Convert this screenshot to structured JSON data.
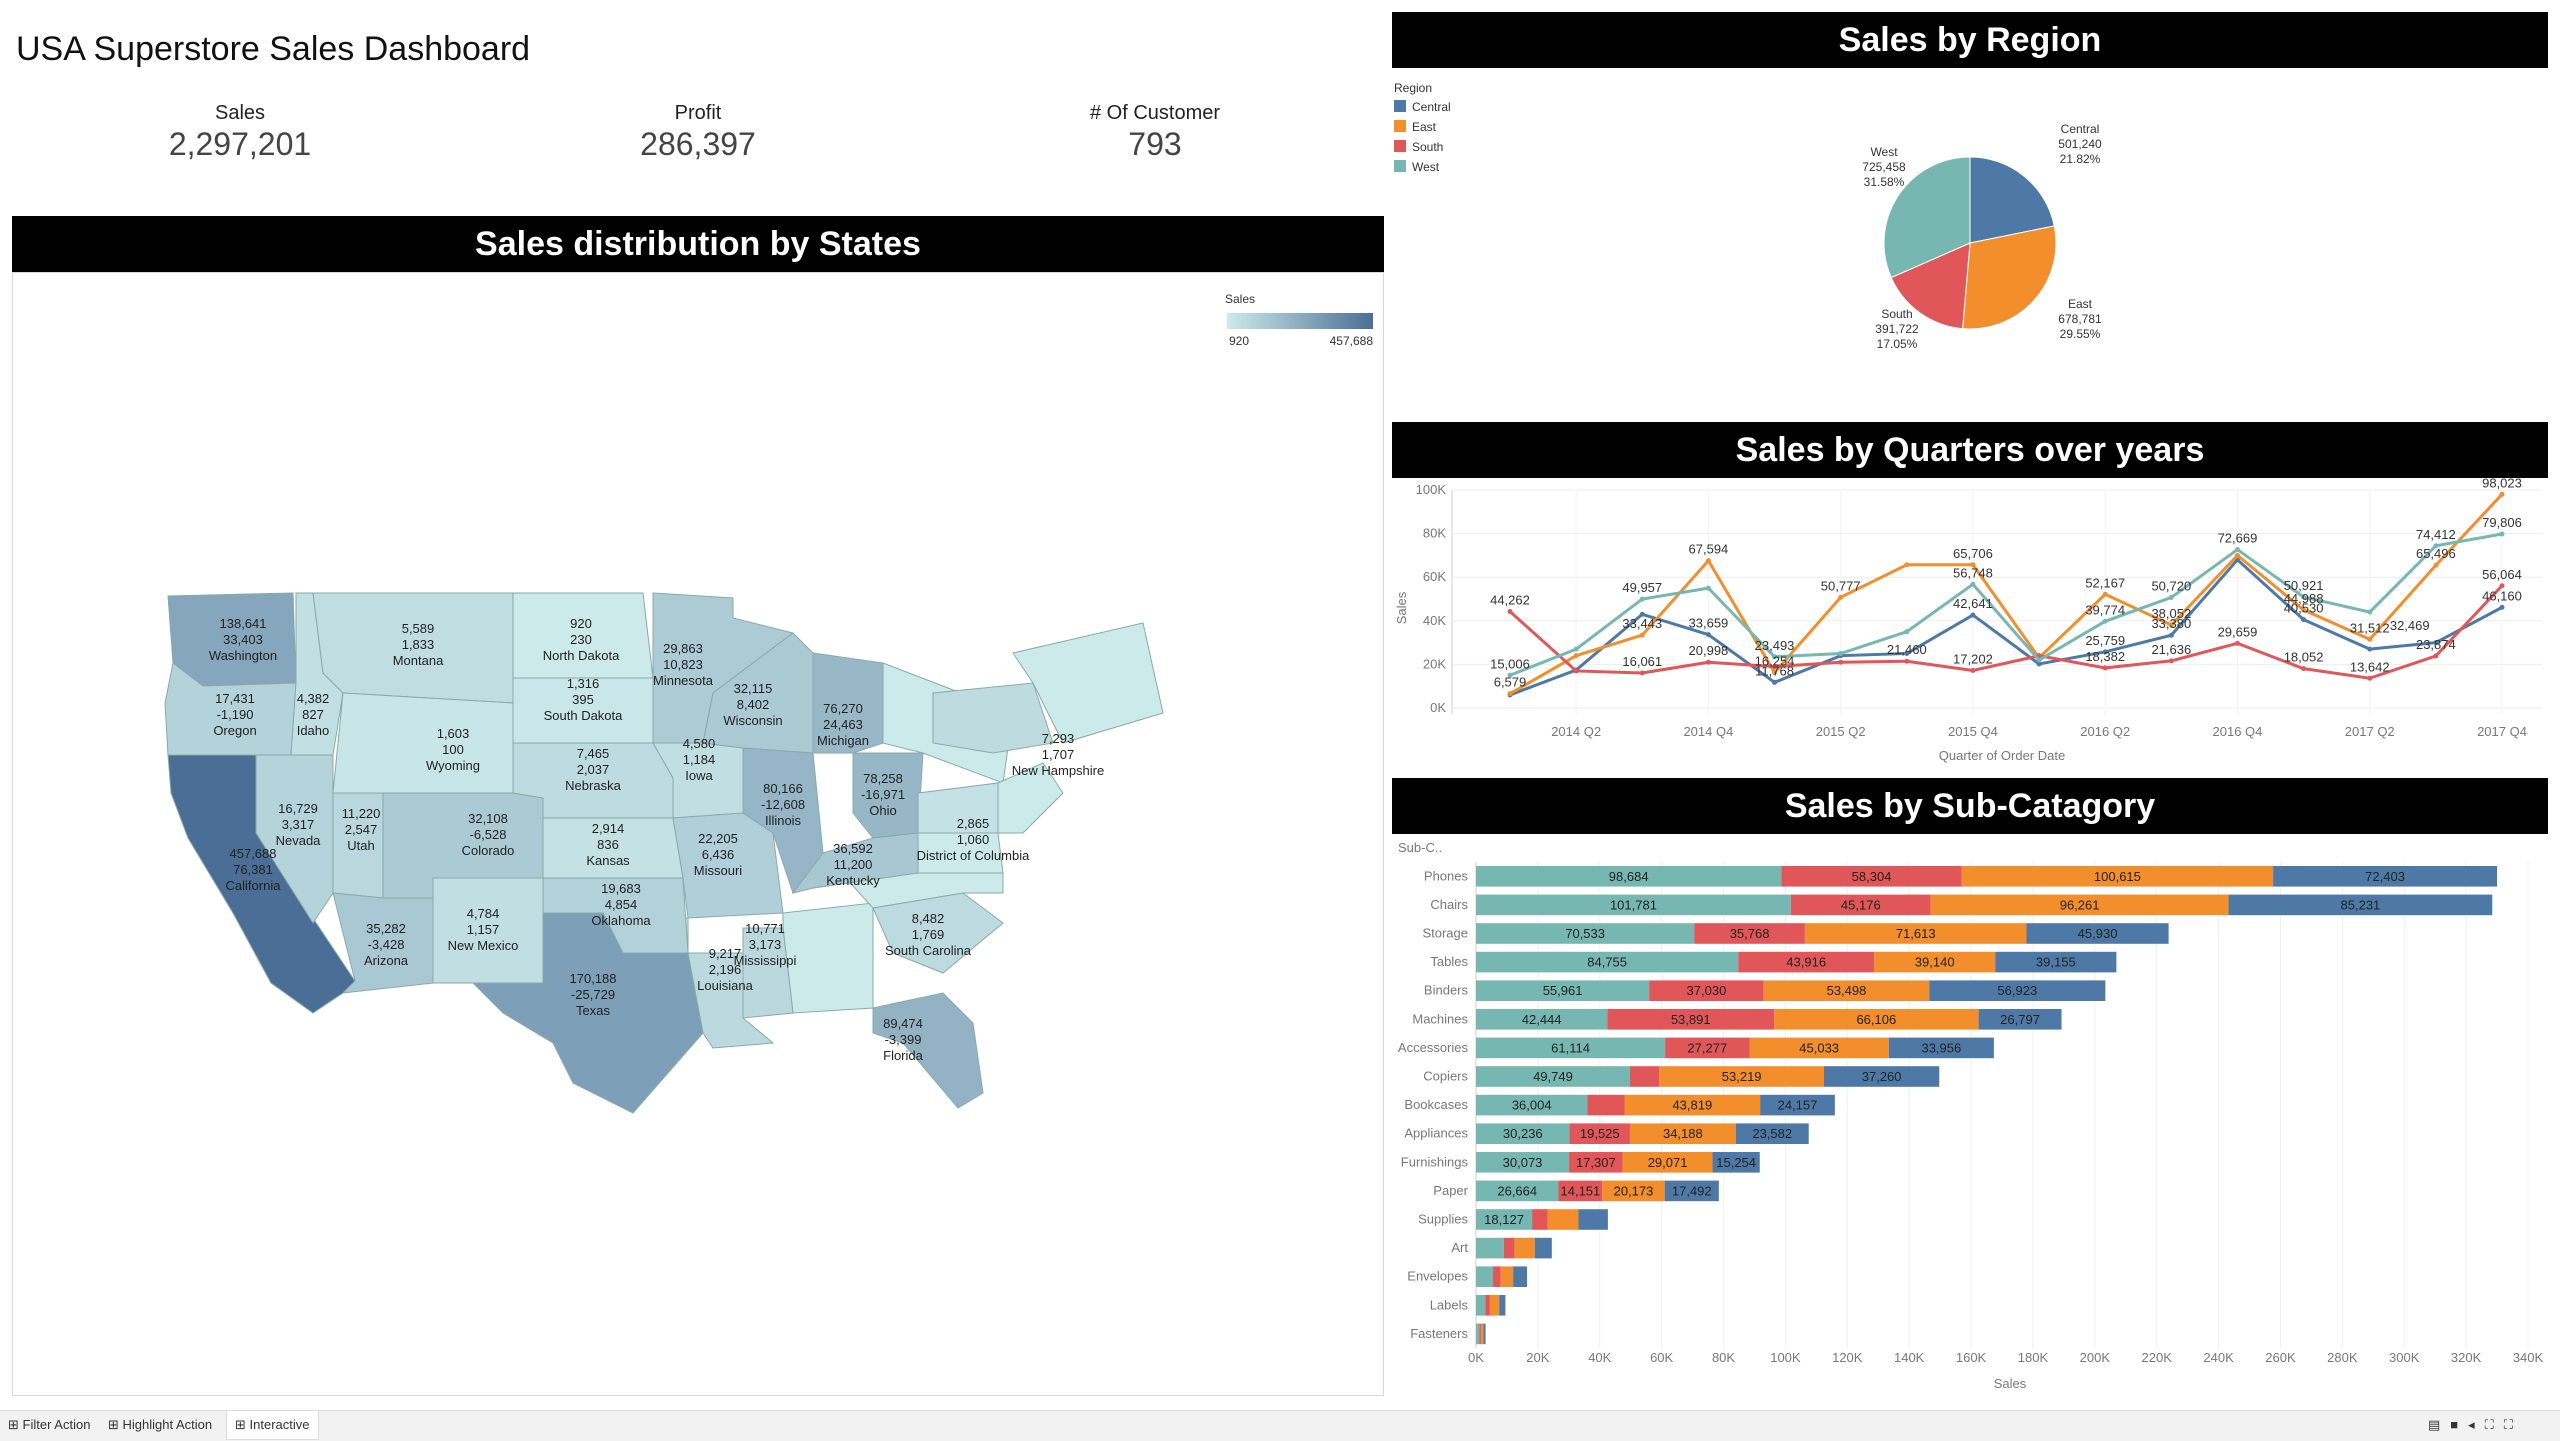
{
  "dashboard": {
    "title": "USA Superstore Sales Dashboard",
    "kpis": [
      {
        "label": "Sales",
        "value": "2,297,201"
      },
      {
        "label": "Profit",
        "value": "286,397"
      },
      {
        "label": "# Of Customer",
        "value": "793"
      }
    ]
  },
  "map": {
    "banner": "Sales distribution by States",
    "legend_title": "Sales",
    "legend_min": "920",
    "legend_max": "457,688",
    "colors": {
      "low": "#cdeaea",
      "high": "#4a6e96"
    }
  },
  "states": [
    {
      "name": "Washington",
      "sales": "138,641",
      "profit": "33,403"
    },
    {
      "name": "Oregon",
      "sales": "17,431",
      "profit": "-1,190"
    },
    {
      "name": "Idaho",
      "sales": "4,382",
      "profit": "827"
    },
    {
      "name": "Montana",
      "sales": "5,589",
      "profit": "1,833"
    },
    {
      "name": "Wyoming",
      "sales": "1,603",
      "profit": "100"
    },
    {
      "name": "North Dakota",
      "sales": "920",
      "profit": "230"
    },
    {
      "name": "South Dakota",
      "sales": "1,316",
      "profit": "395"
    },
    {
      "name": "Minnesota",
      "sales": "29,863",
      "profit": "10,823"
    },
    {
      "name": "Wisconsin",
      "sales": "32,115",
      "profit": "8,402"
    },
    {
      "name": "Michigan",
      "sales": "76,270",
      "profit": "24,463"
    },
    {
      "name": "Iowa",
      "sales": "4,580",
      "profit": "1,184"
    },
    {
      "name": "Nebraska",
      "sales": "7,465",
      "profit": "2,037"
    },
    {
      "name": "Illinois",
      "sales": "80,166",
      "profit": "-12,608"
    },
    {
      "name": "Ohio",
      "sales": "78,258",
      "profit": "-16,971"
    },
    {
      "name": "New Hampshire",
      "sales": "7,293",
      "profit": "1,707"
    },
    {
      "name": "District of Columbia",
      "sales": "2,865",
      "profit": "1,060"
    },
    {
      "name": "California",
      "sales": "457,688",
      "profit": "76,381"
    },
    {
      "name": "Nevada",
      "sales": "16,729",
      "profit": "3,317"
    },
    {
      "name": "Utah",
      "sales": "11,220",
      "profit": "2,547"
    },
    {
      "name": "Colorado",
      "sales": "32,108",
      "profit": "-6,528"
    },
    {
      "name": "Kansas",
      "sales": "2,914",
      "profit": "836"
    },
    {
      "name": "Missouri",
      "sales": "22,205",
      "profit": "6,436"
    },
    {
      "name": "Kentucky",
      "sales": "36,592",
      "profit": "11,200"
    },
    {
      "name": "Arizona",
      "sales": "35,282",
      "profit": "-3,428"
    },
    {
      "name": "New Mexico",
      "sales": "4,784",
      "profit": "1,157"
    },
    {
      "name": "Oklahoma",
      "sales": "19,683",
      "profit": "4,854"
    },
    {
      "name": "Mississippi",
      "sales": "10,771",
      "profit": "3,173"
    },
    {
      "name": "South Carolina",
      "sales": "8,482",
      "profit": "1,769"
    },
    {
      "name": "Texas",
      "sales": "170,188",
      "profit": "-25,729"
    },
    {
      "name": "Louisiana",
      "sales": "9,217",
      "profit": "2,196"
    },
    {
      "name": "Florida",
      "sales": "89,474",
      "profit": "-3,399"
    }
  ],
  "region": {
    "banner": "Sales by Region",
    "legend_title": "Region",
    "colors": {
      "Central": "#4e79a7",
      "East": "#f28e2b",
      "South": "#e15759",
      "West": "#76b7b2"
    }
  },
  "quarters": {
    "banner": "Sales by Quarters over years",
    "xlabel": "Quarter of Order Date",
    "ylabel": "Sales",
    "xticks": [
      "2014 Q2",
      "2014 Q4",
      "2015 Q2",
      "2015 Q4",
      "2016 Q2",
      "2016 Q4",
      "2017 Q2",
      "2017 Q4"
    ]
  },
  "subcat": {
    "banner": "Sales by Sub-Catagory",
    "row_header": "Sub-C..",
    "xlabel": "Sales"
  },
  "chart_data": [
    {
      "type": "pie",
      "title": "Sales by Region",
      "labels": [
        "Central",
        "East",
        "South",
        "West"
      ],
      "values": [
        501240,
        678781,
        391722,
        725458
      ],
      "value_labels": [
        "501,240",
        "678,781",
        "391,722",
        "725,458"
      ],
      "percent_labels": [
        "21.82%",
        "29.55%",
        "17.05%",
        "31.58%"
      ]
    },
    {
      "type": "line",
      "title": "Sales by Quarters over years",
      "x": [
        "2014 Q1",
        "2014 Q2",
        "2014 Q3",
        "2014 Q4",
        "2015 Q1",
        "2015 Q2",
        "2015 Q3",
        "2015 Q4",
        "2016 Q1",
        "2016 Q2",
        "2016 Q3",
        "2016 Q4",
        "2017 Q1",
        "2017 Q2",
        "2017 Q3",
        "2017 Q4"
      ],
      "ylim": [
        0,
        100000
      ],
      "yticks": [
        "0K",
        "20K",
        "40K",
        "60K",
        "80K",
        "100K"
      ],
      "series": [
        {
          "name": "Central",
          "values": [
            6000,
            17407,
            43000,
            33659,
            11768,
            24000,
            25000,
            42641,
            20212,
            25759,
            33380,
            68000,
            40530,
            27000,
            30000,
            46160
          ],
          "labels": [
            "",
            "",
            "",
            "33,659",
            "11,768",
            "",
            "",
            "42,641",
            "",
            "25,759",
            "33,380",
            "",
            "40,530",
            "",
            "",
            "46,160"
          ]
        },
        {
          "name": "East",
          "values": [
            6579,
            24000,
            33443,
            67594,
            16254,
            50777,
            65706,
            65706,
            23000,
            52167,
            38052,
            70000,
            44988,
            31512,
            65496,
            98023
          ],
          "labels": [
            "6,579",
            "",
            "33,443",
            "67,594",
            "16,254",
            "50,777",
            "",
            "65,706",
            "",
            "52,167",
            "38,052",
            "",
            "44,988",
            "31,512",
            "65,496",
            "98,023"
          ]
        },
        {
          "name": "South",
          "values": [
            44262,
            17000,
            16061,
            20998,
            19000,
            21000,
            21460,
            17202,
            24000,
            18382,
            21636,
            29659,
            18052,
            13642,
            23874,
            56064
          ],
          "labels": [
            "44,262",
            "",
            "16,061",
            "20,998",
            "",
            "",
            "21,460",
            "17,202",
            "",
            "18,382",
            "21,636",
            "29,659",
            "18,052",
            "13,642",
            "23,874",
            "56,064"
          ]
        },
        {
          "name": "West",
          "values": [
            15006,
            27000,
            49957,
            55000,
            23493,
            25000,
            35000,
            56748,
            22000,
            39774,
            50720,
            72669,
            50921,
            44000,
            74412,
            79806
          ],
          "labels": [
            "15,006",
            "",
            "49,957",
            "",
            "23,493",
            "",
            "",
            "56,748",
            "",
            "39,774",
            "50,720",
            "72,669",
            "50,921",
            "",
            "74,412",
            "79,806"
          ]
        }
      ],
      "extra_labels": [
        {
          "x": "2017 Q2",
          "text": "32,469"
        }
      ]
    },
    {
      "type": "bar",
      "title": "Sales by Sub-Catagory",
      "orientation": "horizontal",
      "stacked": true,
      "categories": [
        "Phones",
        "Chairs",
        "Storage",
        "Tables",
        "Binders",
        "Machines",
        "Accessories",
        "Copiers",
        "Bookcases",
        "Appliances",
        "Furnishings",
        "Paper",
        "Supplies",
        "Art",
        "Envelopes",
        "Labels",
        "Fasteners"
      ],
      "xlim": [
        0,
        340000
      ],
      "xticks": [
        "0K",
        "20K",
        "40K",
        "60K",
        "80K",
        "100K",
        "120K",
        "140K",
        "160K",
        "180K",
        "200K",
        "220K",
        "240K",
        "260K",
        "280K",
        "300K",
        "320K",
        "340K"
      ],
      "series": [
        {
          "name": "West",
          "values": [
            98684,
            101781,
            70533,
            84755,
            55961,
            42444,
            61114,
            49749,
            36004,
            30236,
            30073,
            26664,
            18127,
            9000,
            5500,
            3000,
            1100
          ],
          "labels": [
            "98,684",
            "101,781",
            "70,533",
            "84,755",
            "55,961",
            "42,444",
            "61,114",
            "49,749",
            "36,004",
            "30,236",
            "30,073",
            "26,664",
            "18,127",
            "",
            "",
            "",
            ""
          ]
        },
        {
          "name": "South",
          "values": [
            58304,
            45176,
            35768,
            43916,
            37030,
            53891,
            27277,
            9500,
            12000,
            19525,
            17307,
            14151,
            5000,
            3500,
            2500,
            1500,
            500
          ],
          "labels": [
            "58,304",
            "45,176",
            "35,768",
            "43,916",
            "37,030",
            "53,891",
            "27,277",
            "",
            "",
            "19,525",
            "17,307",
            "14,151",
            "",
            "",
            "",
            "",
            ""
          ]
        },
        {
          "name": "East",
          "values": [
            100615,
            96261,
            71613,
            39140,
            53498,
            66106,
            45033,
            53219,
            43819,
            34188,
            29071,
            20173,
            10000,
            6500,
            4000,
            3000,
            800
          ],
          "labels": [
            "100,615",
            "96,261",
            "71,613",
            "39,140",
            "53,498",
            "66,106",
            "45,033",
            "53,219",
            "43,819",
            "34,188",
            "29,071",
            "20,173",
            "",
            "",
            "",
            "",
            ""
          ]
        },
        {
          "name": "Central",
          "values": [
            72403,
            85231,
            45930,
            39155,
            56923,
            26797,
            33956,
            37260,
            24157,
            23582,
            15254,
            17492,
            9500,
            5500,
            4500,
            2000,
            700
          ],
          "labels": [
            "72,403",
            "85,231",
            "45,930",
            "39,155",
            "56,923",
            "26,797",
            "33,956",
            "37,260",
            "24,157",
            "23,582",
            "15,254",
            "17,492",
            "",
            "",
            "",
            "",
            ""
          ]
        }
      ]
    }
  ],
  "tabs": [
    "Filter Action",
    "Highlight Action",
    "Interactive"
  ]
}
